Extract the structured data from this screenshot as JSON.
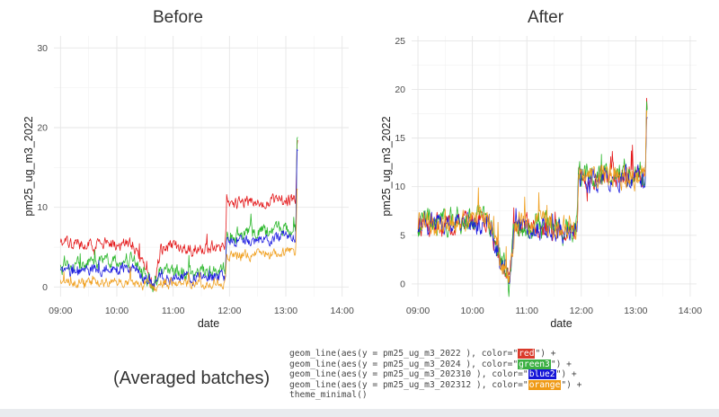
{
  "chart_data": [
    {
      "type": "line",
      "title": "Before",
      "xlabel": "date",
      "ylabel": "pm25_ug_m3_2022",
      "xlim": [
        "08:53",
        "14:07"
      ],
      "ylim": [
        -1.2,
        31.5
      ],
      "xticks": [
        "09:00",
        "10:00",
        "11:00",
        "12:00",
        "13:00",
        "14:00"
      ],
      "yticks": [
        0,
        10,
        20,
        30
      ],
      "grid": true,
      "legend": "none",
      "segments": [
        {
          "start": "09:00",
          "end": "10:17"
        },
        {
          "start": "10:17",
          "end": "10:40"
        },
        {
          "start": "10:40",
          "end": "10:47"
        },
        {
          "start": "10:47",
          "end": "11:57"
        },
        {
          "start": "11:57",
          "end": "13:12"
        },
        {
          "start": "13:12",
          "end": "14:00"
        }
      ],
      "series": [
        {
          "color": "#e41a1c",
          "values": [
            5.4,
            5.4,
            5.4,
            0.2,
            0.1,
            5.0,
            5.0,
            10.5,
            11.0,
            18.5,
            18.5
          ],
          "noise": 0.6
        },
        {
          "color": "#2db82d",
          "values": [
            2.5,
            3.6,
            3.6,
            0.2,
            0.1,
            1.8,
            1.8,
            6.5,
            7.5,
            18.5,
            18.5
          ],
          "noise": 0.7
        },
        {
          "color": "#1c1ce0",
          "values": [
            1.8,
            2.6,
            2.6,
            0.1,
            0.1,
            1.2,
            1.2,
            5.5,
            6.5,
            17.5,
            17.5
          ],
          "noise": 0.6
        },
        {
          "color": "#f0a020",
          "values": [
            0.6,
            0.6,
            0.6,
            0.1,
            0.0,
            0.5,
            0.5,
            3.8,
            4.5,
            12.5,
            12.5
          ],
          "noise": 0.5
        }
      ]
    },
    {
      "type": "line",
      "title": "After",
      "xlabel": "date",
      "ylabel": "pm25_ug_m3_2022",
      "xlim": [
        "08:53",
        "14:07"
      ],
      "ylim": [
        -1.3,
        25.5
      ],
      "xticks": [
        "09:00",
        "10:00",
        "11:00",
        "12:00",
        "13:00",
        "14:00"
      ],
      "yticks": [
        0,
        5,
        10,
        15,
        20,
        25
      ],
      "grid": true,
      "legend": "none",
      "segments": [
        {
          "start": "09:00",
          "end": "10:17"
        },
        {
          "start": "10:17",
          "end": "10:40"
        },
        {
          "start": "10:40",
          "end": "10:47"
        },
        {
          "start": "10:47",
          "end": "11:57"
        },
        {
          "start": "11:57",
          "end": "13:12"
        },
        {
          "start": "13:12",
          "end": "14:00"
        }
      ],
      "series": [
        {
          "color": "#e41a1c",
          "values": [
            6.0,
            6.5,
            6.5,
            0.2,
            0.0,
            6.0,
            5.5,
            11.0,
            11.0,
            18.5,
            18.0
          ],
          "noise": 0.9
        },
        {
          "color": "#2db82d",
          "values": [
            6.2,
            6.8,
            6.8,
            0.5,
            -0.5,
            6.2,
            5.6,
            11.2,
            11.0,
            18.0,
            18.0
          ],
          "noise": 1.0
        },
        {
          "color": "#1c1ce0",
          "values": [
            6.0,
            6.4,
            6.4,
            0.3,
            -0.5,
            6.0,
            5.4,
            10.8,
            10.8,
            18.0,
            17.8
          ],
          "noise": 0.9
        },
        {
          "color": "#f0a020",
          "values": [
            6.3,
            6.6,
            6.6,
            0.3,
            -0.3,
            6.3,
            5.7,
            11.2,
            11.2,
            18.2,
            18.0
          ],
          "noise": 1.0
        }
      ]
    }
  ],
  "caption": "(Averaged batches)",
  "code": {
    "lines": [
      {
        "pre": "geom_line(aes(y = pm25_ug_m3_2022 ), color=\"",
        "hl": "red",
        "hl_color": "#d93a2b",
        "post": "\") +"
      },
      {
        "pre": "geom_line(aes(y = pm25_ug_m3_2024 ), color=\"",
        "hl": "green3",
        "hl_color": "#3cb043",
        "post": "\") +"
      },
      {
        "pre": "geom_line(aes(y = pm25_ug_m3_202310 ), color=\"",
        "hl": "blue2",
        "hl_color": "#1515d8",
        "post": "\") +"
      },
      {
        "pre": "geom_line(aes(y = pm25_ug_m3_202312 ), color=\"",
        "hl": "orange",
        "hl_color": "#ef9a16",
        "post": "\") +"
      },
      {
        "pre": "theme_minimal()",
        "hl": "",
        "hl_color": "",
        "post": ""
      }
    ]
  }
}
